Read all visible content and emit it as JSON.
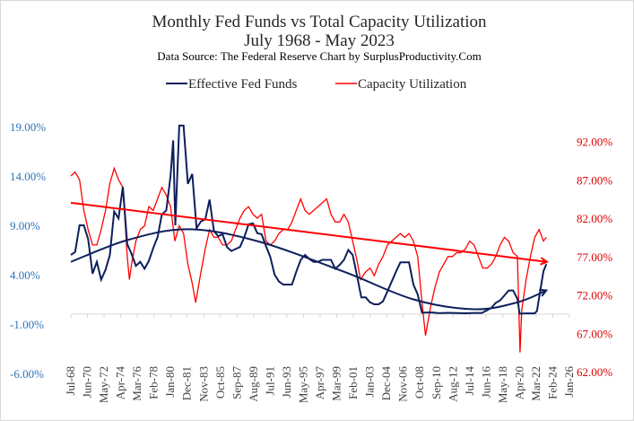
{
  "chart_data": {
    "type": "line",
    "title": "Monthly Fed Funds vs Total Capacity Utilization",
    "subtitle": "July 1968 - May 2023",
    "source": "Data Source: The Federal Reserve  Chart by SurplusProductivity.Com",
    "legend_position": "top",
    "colors": {
      "fed": "#0d1f5c",
      "cap": "#ff0000",
      "left_axis": "#2e75b6",
      "right_axis": "#e00000"
    },
    "x_ticks": [
      "Jul-68",
      "Jun-70",
      "May-72",
      "Apr-74",
      "Mar-76",
      "Feb-78",
      "Jan-80",
      "Dec-81",
      "Nov-83",
      "Oct-85",
      "Sep-87",
      "Aug-89",
      "Jul-91",
      "Jun-93",
      "May-95",
      "Apr-97",
      "Mar-99",
      "Feb-01",
      "Jan-03",
      "Dec-04",
      "Nov-06",
      "Oct-08",
      "Sep-10",
      "Aug-12",
      "Jul-14",
      "Jun-16",
      "May-18",
      "Apr-20",
      "Mar-22",
      "Feb-24",
      "Jan-26"
    ],
    "xlim_years": [
      1968.5,
      2026.0
    ],
    "y_left": {
      "ticks": [
        "19.00%",
        "14.00%",
        "9.00%",
        "4.00%",
        "-1.00%",
        "-6.00%"
      ],
      "range": [
        -6,
        19
      ]
    },
    "y_right": {
      "ticks": [
        "92.00%",
        "87.00%",
        "82.00%",
        "77.00%",
        "72.00%",
        "67.00%",
        "62.00%"
      ],
      "range": [
        62,
        92
      ]
    },
    "series": [
      {
        "name": "Effective Fed Funds",
        "axis": "left",
        "x": [
          1968.5,
          1969,
          1969.5,
          1970,
          1970.5,
          1971,
          1971.5,
          1972,
          1972.5,
          1973,
          1973.5,
          1974,
          1974.5,
          1975,
          1975.5,
          1976,
          1976.5,
          1977,
          1977.5,
          1978,
          1978.5,
          1979,
          1979.5,
          1980,
          1980.3,
          1980.55,
          1981,
          1981.5,
          1982,
          1982.5,
          1983,
          1983.5,
          1984,
          1984.5,
          1985,
          1985.5,
          1986,
          1986.5,
          1987,
          1987.5,
          1988,
          1988.5,
          1989,
          1989.5,
          1990,
          1990.5,
          1991,
          1991.5,
          1992,
          1992.5,
          1993,
          1993.5,
          1994,
          1994.5,
          1995,
          1995.5,
          1996,
          1996.5,
          1997,
          1997.5,
          1998,
          1998.5,
          1999,
          1999.5,
          2000,
          2000.5,
          2001,
          2001.5,
          2002,
          2002.5,
          2003,
          2003.5,
          2004,
          2004.5,
          2005,
          2005.5,
          2006,
          2006.5,
          2007,
          2007.5,
          2008,
          2008.5,
          2009,
          2010,
          2011,
          2012,
          2013,
          2014,
          2015,
          2015.9,
          2016.5,
          2017,
          2017.5,
          2018,
          2018.5,
          2019,
          2019.5,
          2020,
          2020.25,
          2021,
          2022,
          2022.25,
          2022.5,
          2023,
          2023.33
        ],
        "y": [
          6.0,
          6.3,
          9.0,
          9.0,
          7.6,
          4.1,
          5.3,
          3.5,
          4.5,
          6.0,
          10.4,
          9.7,
          12.9,
          7.1,
          6.1,
          4.9,
          5.3,
          4.6,
          5.4,
          6.7,
          7.8,
          10.1,
          10.5,
          14.0,
          17.6,
          9.0,
          19.1,
          19.1,
          13.2,
          14.2,
          8.7,
          9.4,
          9.6,
          11.6,
          8.4,
          7.9,
          8.1,
          6.8,
          6.4,
          6.6,
          6.8,
          7.8,
          9.1,
          9.2,
          8.2,
          8.1,
          6.9,
          5.8,
          4.0,
          3.3,
          3.0,
          3.0,
          3.0,
          4.3,
          5.5,
          6.0,
          5.6,
          5.3,
          5.3,
          5.5,
          5.5,
          5.5,
          4.6,
          5.0,
          5.5,
          6.5,
          6.0,
          3.9,
          1.7,
          1.7,
          1.2,
          1.0,
          1.0,
          1.3,
          2.3,
          3.3,
          4.3,
          5.25,
          5.25,
          5.25,
          3.0,
          2.0,
          0.15,
          0.18,
          0.1,
          0.14,
          0.11,
          0.09,
          0.13,
          0.13,
          0.4,
          0.65,
          1.15,
          1.4,
          1.9,
          2.4,
          2.4,
          1.55,
          0.05,
          0.08,
          0.08,
          0.33,
          1.68,
          4.33,
          5.06
        ],
        "trend": {
          "type": "polynomial",
          "x": [
            1968.5,
            1975,
            1982,
            1990,
            2000,
            2008,
            2015,
            2020,
            2023.33
          ],
          "y": [
            5.3,
            7.5,
            8.6,
            7.4,
            4.3,
            1.5,
            0.5,
            1.2,
            2.4
          ]
        }
      },
      {
        "name": "Capacity Utilization",
        "axis": "right",
        "x": [
          1968.5,
          1969,
          1969.5,
          1970,
          1970.5,
          1971,
          1971.5,
          1972,
          1972.5,
          1973,
          1973.5,
          1974,
          1974.5,
          1975,
          1975.25,
          1975.5,
          1976,
          1976.5,
          1977,
          1977.5,
          1978,
          1978.5,
          1979,
          1979.5,
          1980,
          1980.5,
          1981,
          1981.5,
          1982,
          1982.5,
          1982.9,
          1983.5,
          1984,
          1984.5,
          1985,
          1985.5,
          1986,
          1986.5,
          1987,
          1987.5,
          1988,
          1988.5,
          1989,
          1989.5,
          1990,
          1990.5,
          1991,
          1991.5,
          1992,
          1992.5,
          1993,
          1993.5,
          1994,
          1994.5,
          1995,
          1995.5,
          1996,
          1996.5,
          1997,
          1997.5,
          1998,
          1998.5,
          1999,
          1999.5,
          2000,
          2000.5,
          2001,
          2001.5,
          2001.9,
          2002.5,
          2003,
          2003.5,
          2004,
          2004.5,
          2005,
          2005.5,
          2006,
          2006.5,
          2007,
          2007.5,
          2008,
          2008.5,
          2009,
          2009.4,
          2010,
          2010.5,
          2011,
          2011.5,
          2012,
          2012.5,
          2013,
          2013.5,
          2014,
          2014.5,
          2015,
          2015.5,
          2016,
          2016.5,
          2017,
          2017.5,
          2018,
          2018.5,
          2019,
          2019.5,
          2020,
          2020.3,
          2020.5,
          2021,
          2021.5,
          2022,
          2022.5,
          2023,
          2023.33
        ],
        "y": [
          87.5,
          88,
          87,
          83,
          80.5,
          78.5,
          78.5,
          80.5,
          83,
          86.5,
          88.5,
          87,
          86,
          77,
          74,
          76,
          79,
          80.5,
          81,
          83.5,
          83,
          84.5,
          86,
          85,
          83.5,
          79,
          81,
          80,
          76,
          73.5,
          71,
          75,
          78,
          80.5,
          79.5,
          79.5,
          78.5,
          78.5,
          79,
          80.5,
          82,
          83,
          83.5,
          82.5,
          82,
          82.5,
          79,
          78.5,
          79,
          80,
          80.5,
          80.5,
          81.5,
          83,
          84.5,
          83,
          82.5,
          83,
          83.5,
          84,
          84.5,
          82.5,
          81.5,
          81.5,
          82.5,
          81.5,
          79,
          76.5,
          74,
          75,
          75.5,
          74.5,
          76,
          77,
          78.5,
          79,
          79.5,
          80,
          79.5,
          80,
          79,
          77,
          71,
          66.7,
          70.5,
          73,
          75,
          76,
          77,
          77,
          77.5,
          77.5,
          78,
          79,
          78.5,
          77,
          75.5,
          75.5,
          76,
          77,
          78.5,
          79.5,
          79,
          77.5,
          77,
          64.5,
          70,
          74,
          77,
          79.5,
          80.5,
          79,
          79.5
        ],
        "trend": {
          "type": "linear",
          "x": [
            1968.5,
            2023.4
          ],
          "y": [
            84.0,
            76.3
          ]
        }
      }
    ]
  }
}
